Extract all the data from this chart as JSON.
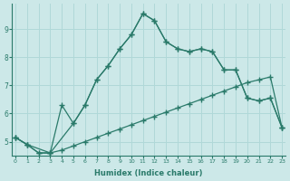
{
  "xlabel": "Humidex (Indice chaleur)",
  "background_color": "#cce8e8",
  "line_color": "#2a7a6a",
  "grid_color": "#b0d8d8",
  "x_ticks": [
    0,
    1,
    2,
    3,
    4,
    5,
    6,
    7,
    8,
    9,
    10,
    11,
    12,
    13,
    14,
    15,
    16,
    17,
    18,
    19,
    20,
    21,
    22,
    23
  ],
  "y_ticks": [
    5,
    6,
    7,
    8,
    9
  ],
  "ylim": [
    4.5,
    9.9
  ],
  "xlim": [
    -0.3,
    23.3
  ],
  "line1_x": [
    0,
    1,
    2,
    3,
    4,
    5,
    6,
    7,
    8,
    9,
    10,
    11,
    12,
    13,
    14,
    15,
    16,
    17,
    18,
    19,
    20,
    21,
    22,
    23
  ],
  "line1_y": [
    5.15,
    4.9,
    4.6,
    4.6,
    4.7,
    4.85,
    5.0,
    5.15,
    5.3,
    5.45,
    5.6,
    5.75,
    5.9,
    6.05,
    6.2,
    6.35,
    6.5,
    6.65,
    6.8,
    6.95,
    7.1,
    7.2,
    7.3,
    5.5
  ],
  "line2_x": [
    0,
    1,
    2,
    3,
    4,
    5,
    6,
    7,
    8,
    9,
    10,
    11,
    12,
    13,
    14,
    15,
    16,
    17,
    18,
    19,
    20,
    21,
    22,
    23
  ],
  "line2_y": [
    5.15,
    4.9,
    4.6,
    4.6,
    6.3,
    5.65,
    6.3,
    7.2,
    7.7,
    8.3,
    8.8,
    9.55,
    9.3,
    8.55,
    8.3,
    8.2,
    8.3,
    8.2,
    7.55,
    7.55,
    6.55,
    6.45,
    6.55,
    5.5
  ],
  "line3_x": [
    0,
    1,
    3,
    5,
    6,
    7,
    8,
    9,
    10,
    11,
    12,
    13,
    14,
    15,
    16,
    17,
    18,
    19,
    20,
    21,
    22,
    23
  ],
  "line3_y": [
    5.15,
    4.9,
    4.6,
    5.65,
    6.3,
    7.2,
    7.7,
    8.3,
    8.8,
    9.55,
    9.3,
    8.55,
    8.3,
    8.2,
    8.3,
    8.2,
    7.55,
    7.55,
    6.55,
    6.45,
    6.55,
    5.5
  ]
}
